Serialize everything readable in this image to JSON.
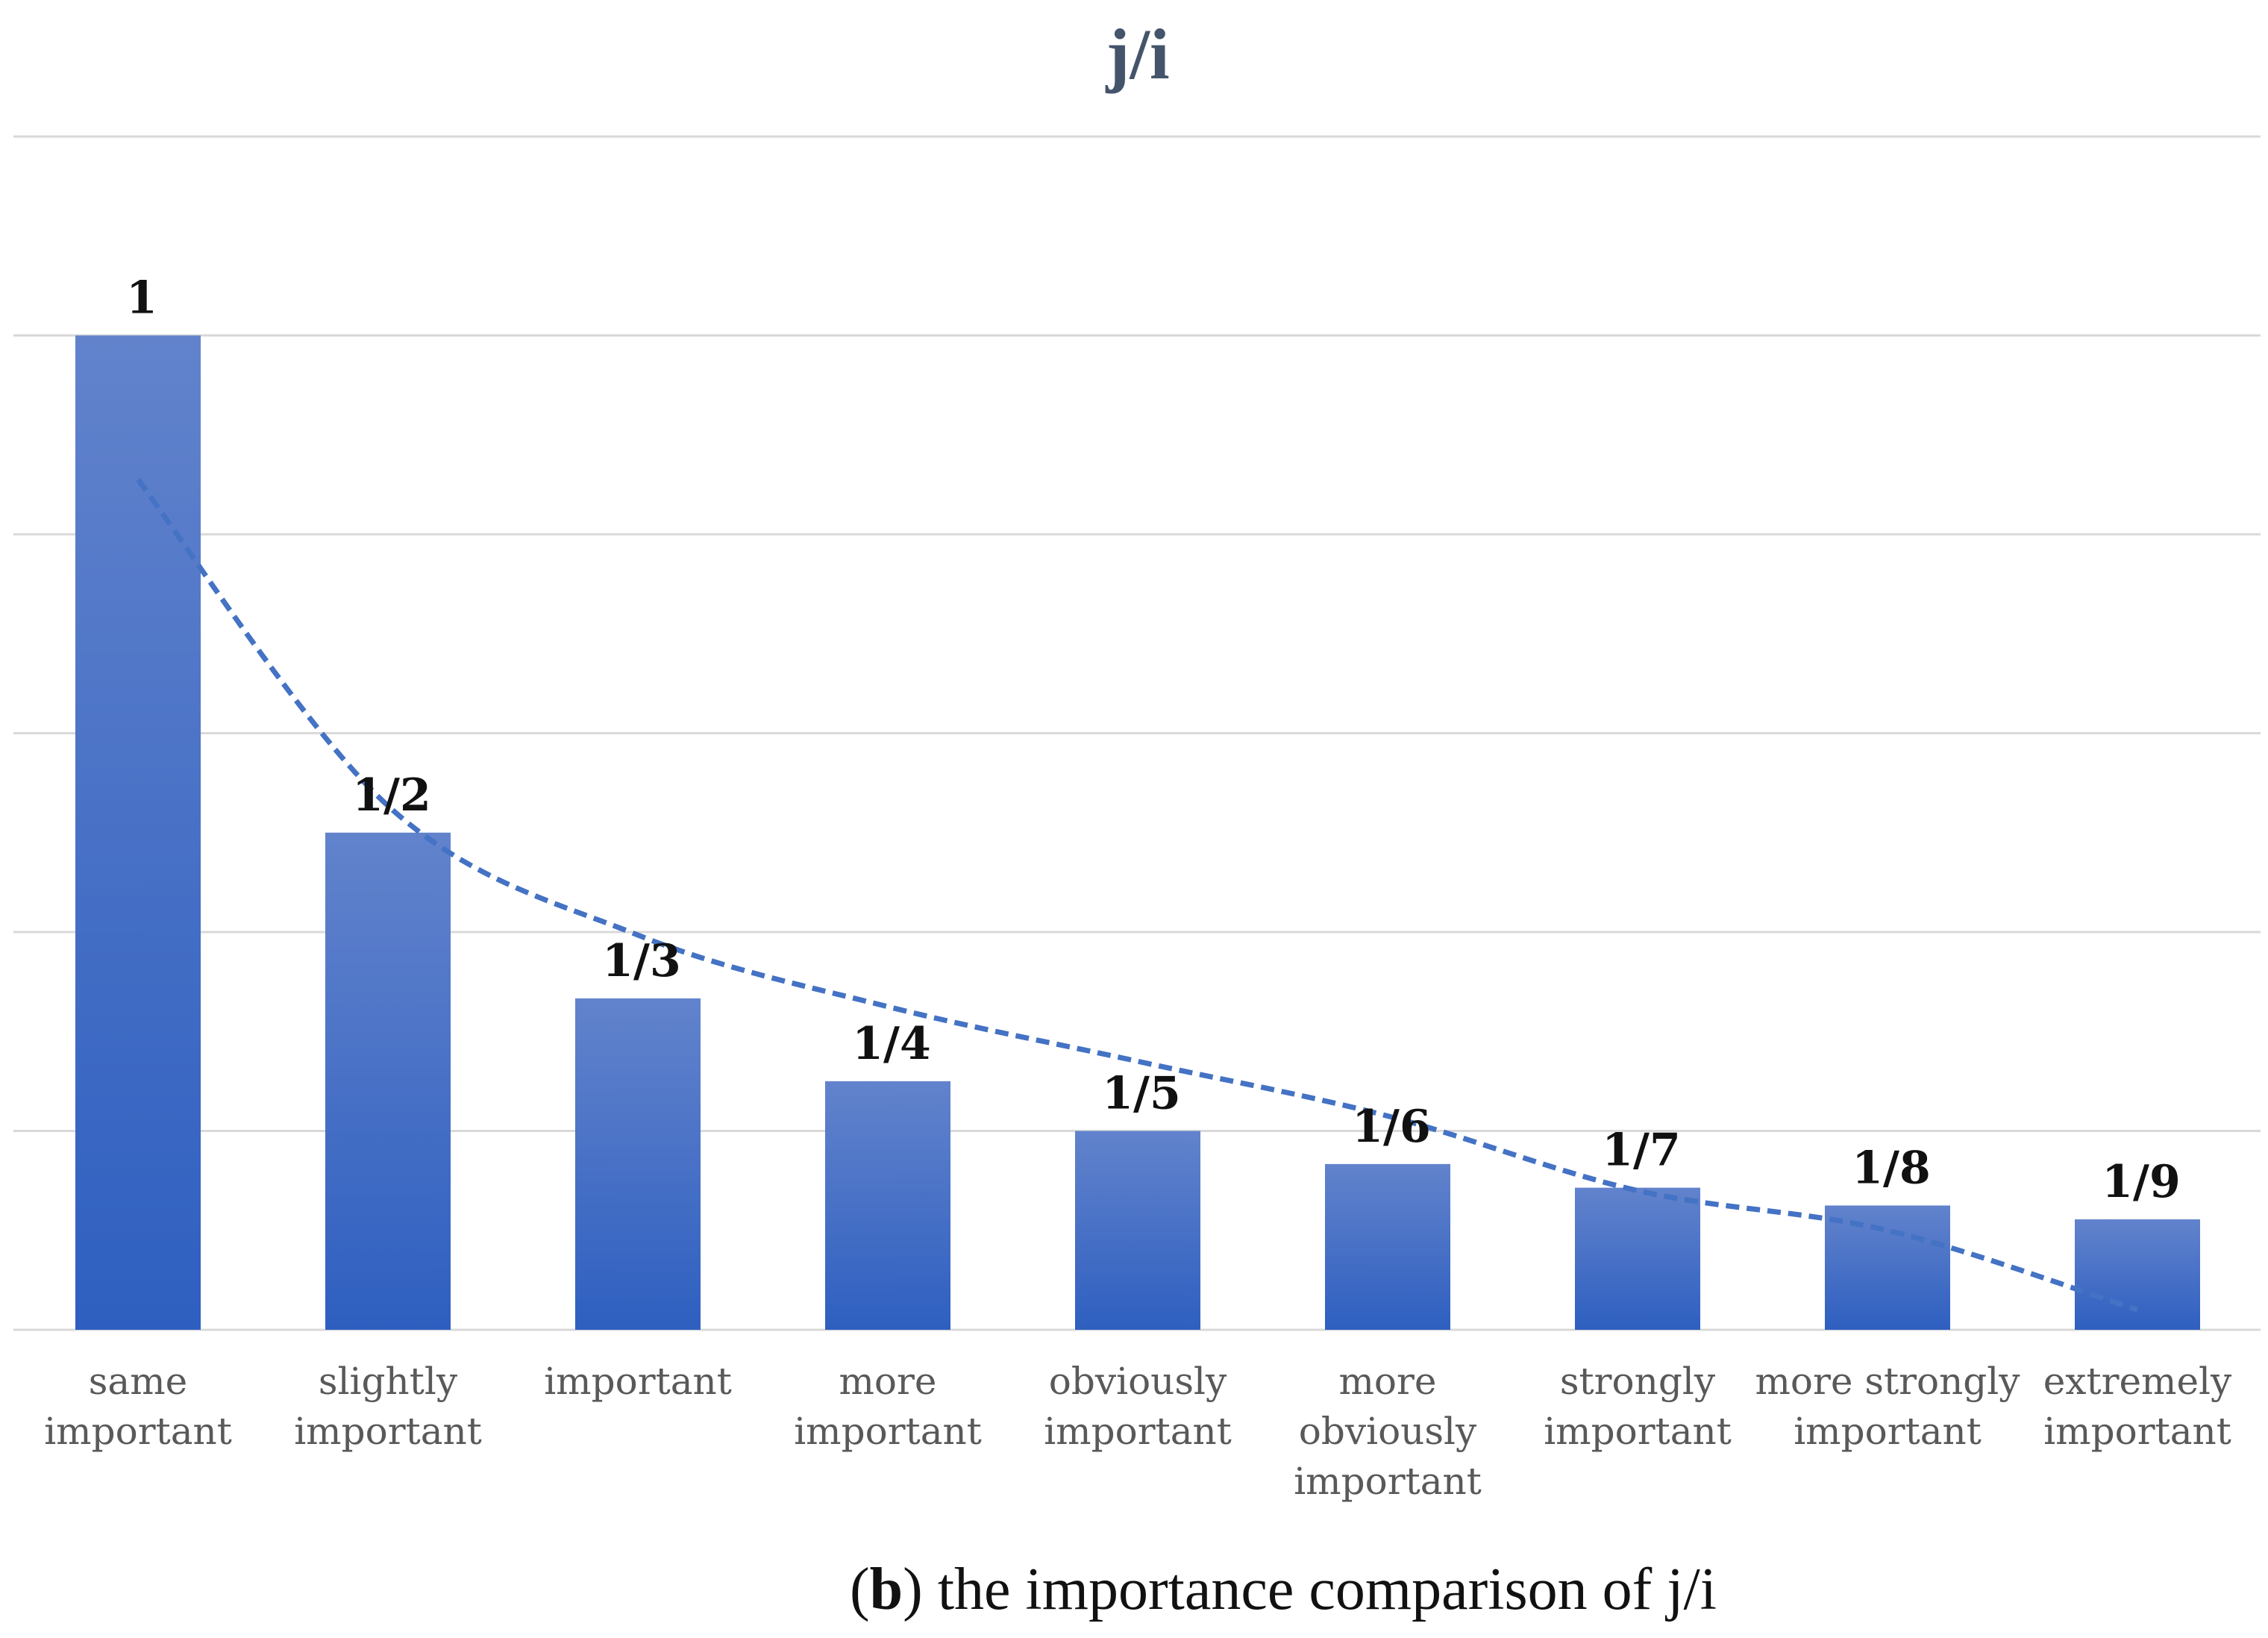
{
  "chart_data": {
    "type": "bar",
    "title": "j/i",
    "categories": [
      [
        "same",
        "important"
      ],
      [
        "slightly",
        "important"
      ],
      [
        "important"
      ],
      [
        "more",
        "important"
      ],
      [
        "obviously",
        "important"
      ],
      [
        "more",
        "obviously",
        "important"
      ],
      [
        "strongly",
        "important"
      ],
      [
        "more strongly",
        "important"
      ],
      [
        "extremely",
        "important"
      ]
    ],
    "values": [
      1,
      0.5,
      0.3333,
      0.25,
      0.2,
      0.1667,
      0.1429,
      0.125,
      0.1111
    ],
    "data_labels": [
      "1",
      "1/2",
      "1/3",
      "1/4",
      "1/5",
      "1/6",
      "1/7",
      "1/8",
      "1/9"
    ],
    "ylim": [
      0,
      1.2
    ],
    "y_gridlines": [
      0,
      0.2,
      0.4,
      0.6,
      0.8,
      1.0,
      1.2
    ],
    "grid": true,
    "legend": "none",
    "trendline": {
      "type": "power",
      "style": "dashed",
      "x": [
        1,
        2,
        3,
        4,
        5,
        6,
        7,
        8,
        9
      ],
      "y": [
        0.855,
        0.527,
        0.397,
        0.325,
        0.27,
        0.215,
        0.14,
        0.1,
        0.02
      ]
    },
    "colors": {
      "bar_top": "#6283cc",
      "bar_bottom": "#2e5fc0",
      "trend": "#4472c4",
      "grid": "#d9d9d9",
      "title": "#44546a"
    }
  },
  "caption": {
    "bold": "b",
    "text": " the importance comparison of j/i"
  }
}
